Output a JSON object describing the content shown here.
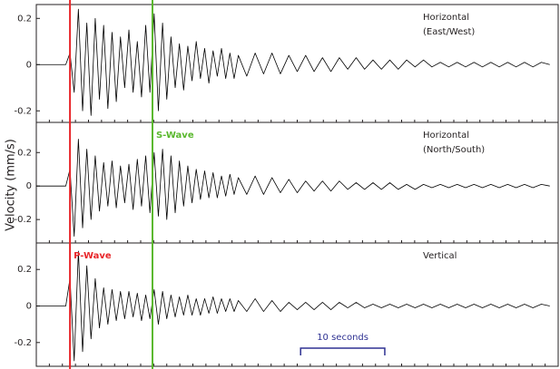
{
  "ylabel": "Velocity (mm/s)",
  "xlim": [
    0,
    62
  ],
  "markers": [
    {
      "name": "P-Wave",
      "color": "#e8262a",
      "x": 4.0
    },
    {
      "name": "S-Wave",
      "color": "#5ab82e",
      "x": 13.8
    }
  ],
  "scale_bar": {
    "label": "10 seconds",
    "color": "#2e3192",
    "x": [
      31.4,
      41.4
    ]
  },
  "chart_data": [
    {
      "type": "line",
      "label": [
        "Horizontal",
        "(East/West)"
      ],
      "color": "#000000",
      "ylim": [
        -0.25,
        0.26
      ],
      "yticks": [
        0.2,
        0,
        -0.2
      ],
      "x": [
        0,
        3.5,
        4,
        4.5,
        5,
        5.5,
        6,
        6.5,
        7,
        7.5,
        8,
        8.5,
        9,
        9.5,
        10,
        10.5,
        11,
        11.5,
        12,
        12.5,
        13,
        13.5,
        14,
        14.5,
        15,
        15.5,
        16,
        16.5,
        17,
        17.5,
        18,
        18.5,
        19,
        19.5,
        20,
        20.5,
        21,
        21.5,
        22,
        22.5,
        23,
        23.5,
        24,
        25,
        26,
        27,
        28,
        29,
        30,
        31,
        32,
        33,
        34,
        35,
        36,
        37,
        38,
        39,
        40,
        41,
        42,
        43,
        44,
        45,
        46,
        47,
        48,
        49,
        50,
        51,
        52,
        53,
        54,
        55,
        56,
        57,
        58,
        59,
        60,
        61
      ],
      "values": [
        0,
        0,
        0.05,
        -0.12,
        0.24,
        -0.2,
        0.18,
        -0.22,
        0.2,
        -0.15,
        0.17,
        -0.19,
        0.14,
        -0.16,
        0.12,
        -0.1,
        0.15,
        -0.12,
        0.1,
        -0.14,
        0.17,
        -0.12,
        0.22,
        -0.2,
        0.18,
        -0.15,
        0.12,
        -0.1,
        0.09,
        -0.11,
        0.08,
        -0.07,
        0.1,
        -0.06,
        0.07,
        -0.08,
        0.06,
        -0.05,
        0.07,
        -0.06,
        0.05,
        -0.06,
        0.04,
        -0.05,
        0.05,
        -0.04,
        0.05,
        -0.04,
        0.04,
        -0.03,
        0.04,
        -0.03,
        0.03,
        -0.03,
        0.03,
        -0.02,
        0.03,
        -0.02,
        0.02,
        -0.02,
        0.02,
        -0.02,
        0.02,
        -0.01,
        0.02,
        -0.01,
        0.01,
        -0.01,
        0.01,
        -0.01,
        0.01,
        -0.01,
        0.01,
        -0.01,
        0.01,
        -0.01,
        0.01,
        -0.01,
        0.01,
        0
      ]
    },
    {
      "type": "line",
      "label": [
        "Horizontal",
        "(North/South)"
      ],
      "color": "#000000",
      "ylim": [
        -0.34,
        0.38
      ],
      "yticks": [
        0.2,
        0,
        -0.2
      ],
      "x": [
        0,
        3.5,
        4,
        4.5,
        5,
        5.5,
        6,
        6.5,
        7,
        7.5,
        8,
        8.5,
        9,
        9.5,
        10,
        10.5,
        11,
        11.5,
        12,
        12.5,
        13,
        13.5,
        14,
        14.5,
        15,
        15.5,
        16,
        16.5,
        17,
        17.5,
        18,
        18.5,
        19,
        19.5,
        20,
        20.5,
        21,
        21.5,
        22,
        22.5,
        23,
        23.5,
        24,
        25,
        26,
        27,
        28,
        29,
        30,
        31,
        32,
        33,
        34,
        35,
        36,
        37,
        38,
        39,
        40,
        41,
        42,
        43,
        44,
        45,
        46,
        47,
        48,
        49,
        50,
        51,
        52,
        53,
        54,
        55,
        56,
        57,
        58,
        59,
        60,
        61
      ],
      "values": [
        0,
        0,
        0.1,
        -0.3,
        0.28,
        -0.25,
        0.22,
        -0.2,
        0.18,
        -0.15,
        0.14,
        -0.12,
        0.15,
        -0.13,
        0.12,
        -0.1,
        0.13,
        -0.14,
        0.16,
        -0.12,
        0.18,
        -0.16,
        0.2,
        -0.18,
        0.22,
        -0.2,
        0.18,
        -0.16,
        0.15,
        -0.12,
        0.12,
        -0.1,
        0.1,
        -0.08,
        0.09,
        -0.07,
        0.08,
        -0.07,
        0.06,
        -0.06,
        0.07,
        -0.05,
        0.05,
        -0.05,
        0.06,
        -0.05,
        0.05,
        -0.04,
        0.04,
        -0.04,
        0.03,
        -0.03,
        0.03,
        -0.03,
        0.03,
        -0.02,
        0.02,
        -0.02,
        0.02,
        -0.02,
        0.02,
        -0.02,
        0.01,
        -0.02,
        0.01,
        -0.01,
        0.01,
        -0.01,
        0.01,
        -0.01,
        0.01,
        -0.01,
        0.01,
        -0.01,
        0.01,
        -0.01,
        0.01,
        -0.01,
        0.01,
        0
      ]
    },
    {
      "type": "line",
      "label": [
        "Vertical"
      ],
      "color": "#000000",
      "ylim": [
        -0.33,
        0.345
      ],
      "yticks": [
        0.2,
        0,
        -0.2
      ],
      "x": [
        0,
        3.5,
        4,
        4.5,
        5,
        5.5,
        6,
        6.5,
        7,
        7.5,
        8,
        8.5,
        9,
        9.5,
        10,
        10.5,
        11,
        11.5,
        12,
        12.5,
        13,
        13.5,
        14,
        14.5,
        15,
        15.5,
        16,
        16.5,
        17,
        17.5,
        18,
        18.5,
        19,
        19.5,
        20,
        20.5,
        21,
        21.5,
        22,
        22.5,
        23,
        23.5,
        24,
        25,
        26,
        27,
        28,
        29,
        30,
        31,
        32,
        33,
        34,
        35,
        36,
        37,
        38,
        39,
        40,
        41,
        42,
        43,
        44,
        45,
        46,
        47,
        48,
        49,
        50,
        51,
        52,
        53,
        54,
        55,
        56,
        57,
        58,
        59,
        60,
        61
      ],
      "values": [
        0,
        0,
        0.15,
        -0.3,
        0.3,
        -0.25,
        0.22,
        -0.18,
        0.15,
        -0.12,
        0.1,
        -0.1,
        0.09,
        -0.08,
        0.08,
        -0.07,
        0.08,
        -0.06,
        0.07,
        -0.08,
        0.06,
        -0.07,
        0.09,
        -0.1,
        0.08,
        -0.07,
        0.06,
        -0.06,
        0.05,
        -0.05,
        0.06,
        -0.05,
        0.04,
        -0.05,
        0.04,
        -0.04,
        0.05,
        -0.04,
        0.04,
        -0.03,
        0.04,
        -0.03,
        0.03,
        -0.03,
        0.04,
        -0.03,
        0.03,
        -0.03,
        0.02,
        -0.02,
        0.02,
        -0.02,
        0.02,
        -0.02,
        0.02,
        -0.01,
        0.02,
        -0.01,
        0.01,
        -0.01,
        0.01,
        -0.01,
        0.01,
        -0.01,
        0.01,
        -0.01,
        0.01,
        -0.01,
        0.01,
        -0.01,
        0.01,
        -0.01,
        0.01,
        -0.01,
        0.01,
        -0.01,
        0.01,
        -0.01,
        0.01,
        0
      ]
    }
  ]
}
